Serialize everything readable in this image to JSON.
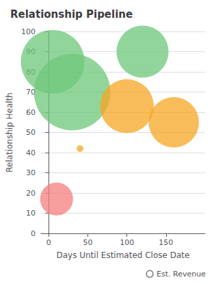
{
  "chart_data": {
    "type": "scatter",
    "title": "Relationship Pipeline",
    "xlabel": "Days Until Estimated Close Date",
    "ylabel": "Relationship Health",
    "xlim": [
      -10,
      200
    ],
    "ylim": [
      0,
      100
    ],
    "xticks": [
      0,
      50,
      100,
      150
    ],
    "yticks": [
      0,
      10,
      20,
      30,
      40,
      50,
      60,
      70,
      80,
      90,
      100
    ],
    "grid": true,
    "legend": "lower right",
    "series": [
      {
        "name": "Est. Revenue",
        "color": "#555555",
        "x": [
          5,
          30,
          40,
          120,
          100,
          160,
          10
        ],
        "values": [
          85,
          70,
          42,
          90,
          63,
          55,
          17
        ],
        "sizes": [
          4500,
          6500,
          50,
          3000,
          3200,
          2800,
          1200
        ],
        "colors": [
          "#6dc77a",
          "#6dc77a",
          "#f5a623",
          "#6dc77a",
          "#f5a623",
          "#f5a623",
          "#f47f7f"
        ]
      }
    ]
  }
}
